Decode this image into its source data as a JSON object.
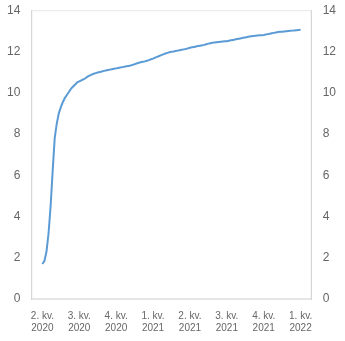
{
  "chart_data": {
    "type": "line",
    "x": [
      0,
      0.0556,
      0.1111,
      0.1667,
      0.2222,
      0.2778,
      0.3333,
      0.3889,
      0.4444,
      0.5,
      0.5556,
      0.6111,
      0.6667,
      0.7222,
      0.7778,
      0.8333,
      0.8889,
      0.9444,
      1,
      1.0556,
      1.1111,
      1.1667,
      1.2222,
      1.2778,
      1.3333,
      1.3889,
      1.4444,
      1.5,
      1.5556,
      1.6111,
      1.6667,
      1.7222,
      1.7778,
      1.8333,
      1.8889,
      1.9444,
      2,
      2.0556,
      2.1111,
      2.1667,
      2.2222,
      2.2778,
      2.3333,
      2.3889,
      2.4444,
      2.5,
      2.5556,
      2.6111,
      2.6667,
      2.7222,
      2.7778,
      2.8333,
      2.8889,
      2.9444,
      3,
      3.0556,
      3.1111,
      3.1667,
      3.2222,
      3.2778,
      3.3333,
      3.3889,
      3.4444,
      3.5,
      3.5556,
      3.6111,
      3.6667,
      3.7222,
      3.7778,
      3.8333,
      3.8889,
      3.9444,
      4,
      4.0556,
      4.1111,
      4.1667,
      4.2222,
      4.2778,
      4.3333,
      4.3889,
      4.4444,
      4.5,
      4.5556,
      4.6111,
      4.6667,
      4.7222,
      4.7778,
      4.8333,
      4.8889,
      4.9444,
      5,
      5.0556,
      5.1111,
      5.1667,
      5.2222,
      5.2778,
      5.3333,
      5.3889,
      5.4444,
      5.5,
      5.5556,
      5.6111,
      5.6667,
      5.7222,
      5.7778,
      5.8333,
      5.8889,
      5.9444,
      6,
      6.0556,
      6.1111,
      6.1667,
      6.2222,
      6.2778,
      6.3333,
      6.3889,
      6.4444,
      6.5,
      6.5556,
      6.6111,
      6.6667,
      6.7222,
      6.7778,
      6.8333,
      6.8889,
      6.9444,
      7
    ],
    "values": [
      1.7,
      1.85,
      2.3,
      3.2,
      4.5,
      6.2,
      7.8,
      8.5,
      9.0,
      9.3,
      9.55,
      9.75,
      9.9,
      10.05,
      10.2,
      10.3,
      10.4,
      10.5,
      10.55,
      10.6,
      10.65,
      10.7,
      10.78,
      10.83,
      10.88,
      10.92,
      10.95,
      10.98,
      11.0,
      11.03,
      11.06,
      11.08,
      11.1,
      11.12,
      11.14,
      11.16,
      11.18,
      11.2,
      11.22,
      11.24,
      11.26,
      11.28,
      11.3,
      11.32,
      11.35,
      11.38,
      11.42,
      11.45,
      11.48,
      11.5,
      11.52,
      11.55,
      11.58,
      11.62,
      11.65,
      11.7,
      11.74,
      11.78,
      11.82,
      11.86,
      11.9,
      11.93,
      11.96,
      11.99,
      12.0,
      12.02,
      12.04,
      12.06,
      12.08,
      12.1,
      12.12,
      12.15,
      12.18,
      12.2,
      12.22,
      12.24,
      12.26,
      12.28,
      12.3,
      12.32,
      12.35,
      12.38,
      12.4,
      12.42,
      12.44,
      12.45,
      12.46,
      12.47,
      12.48,
      12.49,
      12.5,
      12.52,
      12.54,
      12.56,
      12.58,
      12.6,
      12.62,
      12.64,
      12.66,
      12.68,
      12.7,
      12.72,
      12.74,
      12.75,
      12.76,
      12.77,
      12.78,
      12.79,
      12.8,
      12.82,
      12.84,
      12.86,
      12.88,
      12.9,
      12.92,
      12.94,
      12.95,
      12.96,
      12.97,
      12.98,
      12.99,
      13.0,
      13.01,
      13.02,
      13.03,
      13.04,
      13.05
    ],
    "color": "#5B9BD5",
    "xlim": [
      -0.3,
      7.3
    ],
    "xticks": [
      {
        "value": 0,
        "label": "2. kv.\n2020"
      },
      {
        "value": 1,
        "label": "3. kv.\n2020"
      },
      {
        "value": 2,
        "label": "4. kv.\n2020"
      },
      {
        "value": 3,
        "label": "1. kv.\n2021"
      },
      {
        "value": 4,
        "label": "2. kv.\n2021"
      },
      {
        "value": 5,
        "label": "3. kv.\n2021"
      },
      {
        "value": 6,
        "label": "4. kv.\n2021"
      },
      {
        "value": 7,
        "label": "1. kv.\n2022"
      }
    ],
    "ylim": [
      0,
      14
    ],
    "yticks": [
      0,
      2,
      4,
      6,
      8,
      10,
      12,
      14
    ],
    "y2lim": [
      0,
      14
    ],
    "y2ticks": [
      0,
      2,
      4,
      6,
      8,
      10,
      12,
      14
    ],
    "grid": false
  }
}
